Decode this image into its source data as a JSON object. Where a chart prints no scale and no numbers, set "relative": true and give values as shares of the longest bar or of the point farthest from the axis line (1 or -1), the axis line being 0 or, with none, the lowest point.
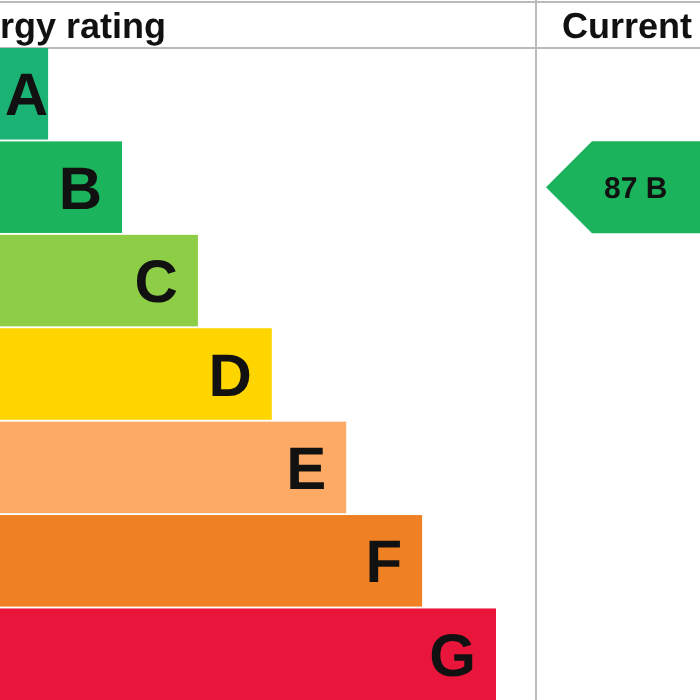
{
  "chart_data": {
    "type": "bar",
    "orientation": "horizontal",
    "relative": true,
    "title": "rgy rating",
    "categories": [
      "A",
      "B",
      "C",
      "D",
      "E",
      "F",
      "G"
    ],
    "values": [
      0.097,
      0.246,
      0.399,
      0.548,
      0.698,
      0.851,
      1
    ],
    "colors": [
      "#1bb374",
      "#1bb35b",
      "#8dce46",
      "#ffd500",
      "#fcaa65",
      "#ef8023",
      "#e9153b"
    ],
    "annotations": [
      "Current",
      "87 B"
    ]
  }
}
